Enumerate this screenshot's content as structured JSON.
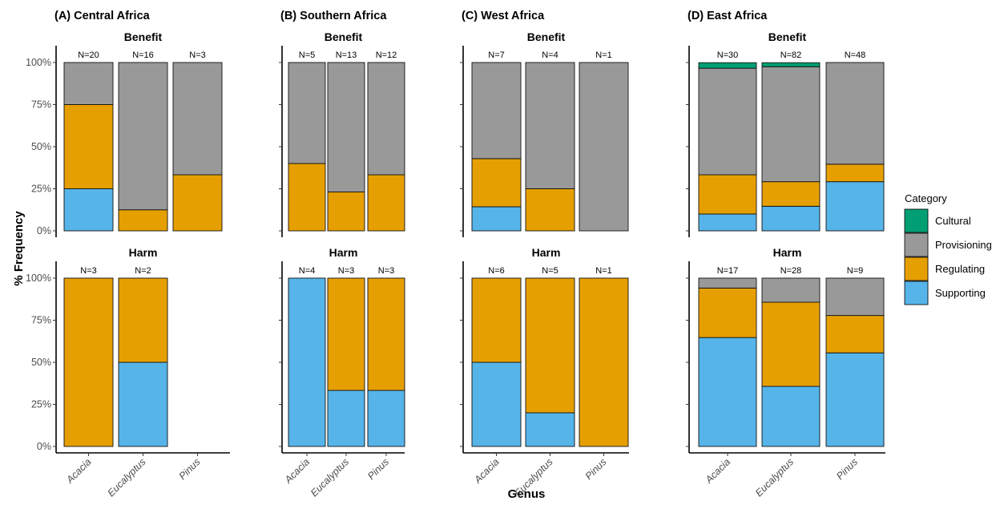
{
  "chart_data": {
    "type": "bar",
    "stacked": true,
    "x_axis_title": "Genus",
    "y_axis_title": "% Frequency",
    "y_ticks": [
      "0%",
      "25%",
      "50%",
      "75%",
      "100%"
    ],
    "ylim": [
      0,
      100
    ],
    "categories": [
      "Acacia",
      "Eucalyptus",
      "Pinus"
    ],
    "facet_rows": [
      "Benefit",
      "Harm"
    ],
    "legend": {
      "title": "Category",
      "placement": "right",
      "items": [
        {
          "name": "Cultural",
          "color": "#009E73"
        },
        {
          "name": "Provisioning",
          "color": "#999999"
        },
        {
          "name": "Regulating",
          "color": "#E69F00"
        },
        {
          "name": "Supporting",
          "color": "#56B4E9"
        }
      ]
    },
    "stack_order": [
      "Supporting",
      "Regulating",
      "Provisioning",
      "Cultural"
    ],
    "panels": [
      {
        "title": "(A) Central Africa",
        "show_y_ticks": true,
        "rows": {
          "Benefit": [
            {
              "genus": "Acacia",
              "n": "N=20",
              "values": {
                "Supporting": 25,
                "Regulating": 50,
                "Provisioning": 25,
                "Cultural": 0
              }
            },
            {
              "genus": "Eucalyptus",
              "n": "N=16",
              "values": {
                "Supporting": 0,
                "Regulating": 12.5,
                "Provisioning": 87.5,
                "Cultural": 0
              }
            },
            {
              "genus": "Pinus",
              "n": "N=3",
              "values": {
                "Supporting": 0,
                "Regulating": 33.3,
                "Provisioning": 66.7,
                "Cultural": 0
              }
            }
          ],
          "Harm": [
            {
              "genus": "Acacia",
              "n": "N=3",
              "values": {
                "Supporting": 0,
                "Regulating": 100,
                "Provisioning": 0,
                "Cultural": 0
              }
            },
            {
              "genus": "Eucalyptus",
              "n": "N=2",
              "values": {
                "Supporting": 50,
                "Regulating": 50,
                "Provisioning": 0,
                "Cultural": 0
              }
            }
          ]
        }
      },
      {
        "title": "(B) Southern Africa",
        "show_y_ticks": false,
        "rows": {
          "Benefit": [
            {
              "genus": "Acacia",
              "n": "N=5",
              "values": {
                "Supporting": 0,
                "Regulating": 40,
                "Provisioning": 60,
                "Cultural": 0
              }
            },
            {
              "genus": "Eucalyptus",
              "n": "N=13",
              "values": {
                "Supporting": 0,
                "Regulating": 23.1,
                "Provisioning": 76.9,
                "Cultural": 0
              }
            },
            {
              "genus": "Pinus",
              "n": "N=12",
              "values": {
                "Supporting": 0,
                "Regulating": 33.3,
                "Provisioning": 66.7,
                "Cultural": 0
              }
            }
          ],
          "Harm": [
            {
              "genus": "Acacia",
              "n": "N=4",
              "values": {
                "Supporting": 100,
                "Regulating": 0,
                "Provisioning": 0,
                "Cultural": 0
              }
            },
            {
              "genus": "Eucalyptus",
              "n": "N=3",
              "values": {
                "Supporting": 33.3,
                "Regulating": 66.7,
                "Provisioning": 0,
                "Cultural": 0
              }
            },
            {
              "genus": "Pinus",
              "n": "N=3",
              "values": {
                "Supporting": 33.3,
                "Regulating": 66.7,
                "Provisioning": 0,
                "Cultural": 0
              }
            }
          ]
        }
      },
      {
        "title": "(C) West Africa",
        "show_y_ticks": false,
        "rows": {
          "Benefit": [
            {
              "genus": "Acacia",
              "n": "N=7",
              "values": {
                "Supporting": 14.3,
                "Regulating": 28.6,
                "Provisioning": 57.1,
                "Cultural": 0
              }
            },
            {
              "genus": "Eucalyptus",
              "n": "N=4",
              "values": {
                "Supporting": 0,
                "Regulating": 25,
                "Provisioning": 75,
                "Cultural": 0
              }
            },
            {
              "genus": "Pinus",
              "n": "N=1",
              "values": {
                "Supporting": 0,
                "Regulating": 0,
                "Provisioning": 100,
                "Cultural": 0
              }
            }
          ],
          "Harm": [
            {
              "genus": "Acacia",
              "n": "N=6",
              "values": {
                "Supporting": 50,
                "Regulating": 50,
                "Provisioning": 0,
                "Cultural": 0
              }
            },
            {
              "genus": "Eucalyptus",
              "n": "N=5",
              "values": {
                "Supporting": 20,
                "Regulating": 80,
                "Provisioning": 0,
                "Cultural": 0
              }
            },
            {
              "genus": "Pinus",
              "n": "N=1",
              "values": {
                "Supporting": 0,
                "Regulating": 100,
                "Provisioning": 0,
                "Cultural": 0
              }
            }
          ]
        }
      },
      {
        "title": "(D) East Africa",
        "show_y_ticks": false,
        "rows": {
          "Benefit": [
            {
              "genus": "Acacia",
              "n": "N=30",
              "values": {
                "Supporting": 10,
                "Regulating": 23.3,
                "Provisioning": 63.3,
                "Cultural": 3.3
              }
            },
            {
              "genus": "Eucalyptus",
              "n": "N=82",
              "values": {
                "Supporting": 14.6,
                "Regulating": 14.6,
                "Provisioning": 68.3,
                "Cultural": 2.4
              }
            },
            {
              "genus": "Pinus",
              "n": "N=48",
              "values": {
                "Supporting": 29.2,
                "Regulating": 10.4,
                "Provisioning": 60.4,
                "Cultural": 0
              }
            }
          ],
          "Harm": [
            {
              "genus": "Acacia",
              "n": "N=17",
              "values": {
                "Supporting": 64.7,
                "Regulating": 29.4,
                "Provisioning": 5.9,
                "Cultural": 0
              }
            },
            {
              "genus": "Eucalyptus",
              "n": "N=28",
              "values": {
                "Supporting": 35.7,
                "Regulating": 50,
                "Provisioning": 14.3,
                "Cultural": 0
              }
            },
            {
              "genus": "Pinus",
              "n": "N=9",
              "values": {
                "Supporting": 55.6,
                "Regulating": 22.2,
                "Provisioning": 22.2,
                "Cultural": 0
              }
            }
          ]
        }
      }
    ]
  }
}
